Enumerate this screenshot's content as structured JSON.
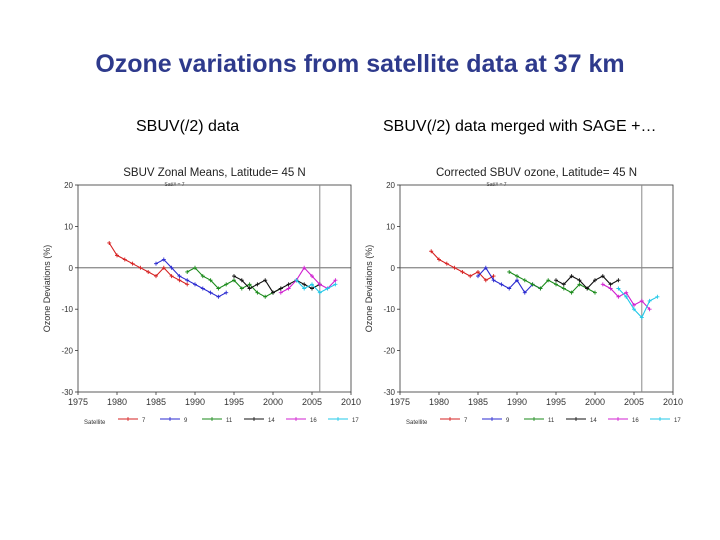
{
  "slide": {
    "title": "Ozone variations from satellite data at 37 km",
    "left_label": "SBUV(/2) data",
    "right_label": "SBUV(/2) data merged with SAGE +…"
  },
  "colors": {
    "title": "#2e3a8c",
    "axis": "#333333",
    "vline": "#888888"
  },
  "chart_data": [
    {
      "type": "line",
      "title": "SBUV  Zonal  Means,  Latitude= 45  N",
      "subtitle": "Sat/# = 7",
      "ylabel": "Ozone  Deviations  (%)",
      "xlim": [
        1975,
        2010
      ],
      "ylim": [
        -30,
        20
      ],
      "xticks": [
        1975,
        1980,
        1985,
        1990,
        1995,
        2000,
        2005,
        2010
      ],
      "yticks": [
        20,
        10,
        0,
        -10,
        -20,
        -30
      ],
      "reference_line_x": 2006,
      "legend_title": "Satellite",
      "series": [
        {
          "name": "7",
          "color": "#d62020",
          "x": [
            1979,
            1980,
            1981,
            1982,
            1983,
            1984,
            1985,
            1986,
            1987,
            1988,
            1989
          ],
          "values": [
            6,
            3,
            2,
            1,
            0,
            -1,
            -2,
            0,
            -2,
            -3,
            -4
          ]
        },
        {
          "name": "9",
          "color": "#2a2ad0",
          "x": [
            1985,
            1986,
            1987,
            1988,
            1989,
            1990,
            1991,
            1992,
            1993,
            1994
          ],
          "values": [
            1,
            2,
            0,
            -2,
            -3,
            -4,
            -5,
            -6,
            -7,
            -6
          ]
        },
        {
          "name": "11",
          "color": "#1a8a1a",
          "x": [
            1989,
            1990,
            1991,
            1992,
            1993,
            1994,
            1995,
            1996,
            1997,
            1998,
            1999,
            2000,
            2001
          ],
          "values": [
            -1,
            0,
            -2,
            -3,
            -5,
            -4,
            -3,
            -5,
            -4,
            -6,
            -7,
            -6,
            -5
          ]
        },
        {
          "name": "14",
          "color": "#111111",
          "x": [
            1995,
            1996,
            1997,
            1998,
            1999,
            2000,
            2001,
            2002,
            2003,
            2004,
            2005,
            2006
          ],
          "values": [
            -2,
            -3,
            -5,
            -4,
            -3,
            -6,
            -5,
            -4,
            -3,
            -4,
            -5,
            -4
          ]
        },
        {
          "name": "16",
          "color": "#d020d0",
          "x": [
            2001,
            2002,
            2003,
            2004,
            2005,
            2006,
            2007,
            2008
          ],
          "values": [
            -6,
            -5,
            -3,
            0,
            -2,
            -4,
            -5,
            -3
          ]
        },
        {
          "name": "17",
          "color": "#20c8e8",
          "x": [
            2003,
            2004,
            2005,
            2006,
            2007,
            2008
          ],
          "values": [
            -3,
            -5,
            -4,
            -6,
            -5,
            -4
          ]
        }
      ]
    },
    {
      "type": "line",
      "title": "Corrected  SBUV  ozone,  Latitude= 45  N",
      "subtitle": "Sat/# = 7",
      "ylabel": "Ozone  Deviations  (%)",
      "xlim": [
        1975,
        2010
      ],
      "ylim": [
        -30,
        20
      ],
      "xticks": [
        1975,
        1980,
        1985,
        1990,
        1995,
        2000,
        2005,
        2010
      ],
      "yticks": [
        20,
        10,
        0,
        -10,
        -20,
        -30
      ],
      "reference_line_x": 2006,
      "legend_title": "Satellite",
      "series": [
        {
          "name": "7",
          "color": "#d62020",
          "x": [
            1979,
            1980,
            1981,
            1982,
            1983,
            1984,
            1985,
            1986,
            1987
          ],
          "values": [
            4,
            2,
            1,
            0,
            -1,
            -2,
            -1,
            -3,
            -2
          ]
        },
        {
          "name": "9",
          "color": "#2a2ad0",
          "x": [
            1985,
            1986,
            1987,
            1988,
            1989,
            1990,
            1991,
            1992,
            1993
          ],
          "values": [
            -2,
            0,
            -3,
            -4,
            -5,
            -3,
            -6,
            -4,
            -5
          ]
        },
        {
          "name": "11",
          "color": "#1a8a1a",
          "x": [
            1989,
            1990,
            1991,
            1992,
            1993,
            1994,
            1995,
            1996,
            1997,
            1998,
            1999,
            2000
          ],
          "values": [
            -1,
            -2,
            -3,
            -4,
            -5,
            -3,
            -4,
            -5,
            -6,
            -4,
            -5,
            -6
          ]
        },
        {
          "name": "14",
          "color": "#111111",
          "x": [
            1995,
            1996,
            1997,
            1998,
            1999,
            2000,
            2001,
            2002,
            2003
          ],
          "values": [
            -3,
            -4,
            -2,
            -3,
            -5,
            -3,
            -2,
            -4,
            -3
          ]
        },
        {
          "name": "16",
          "color": "#d020d0",
          "x": [
            2001,
            2002,
            2003,
            2004,
            2005,
            2006,
            2007
          ],
          "values": [
            -4,
            -5,
            -7,
            -6,
            -9,
            -8,
            -10
          ]
        },
        {
          "name": "17",
          "color": "#20c8e8",
          "x": [
            2003,
            2004,
            2005,
            2006,
            2007,
            2008
          ],
          "values": [
            -5,
            -7,
            -10,
            -12,
            -8,
            -7
          ]
        }
      ]
    }
  ]
}
